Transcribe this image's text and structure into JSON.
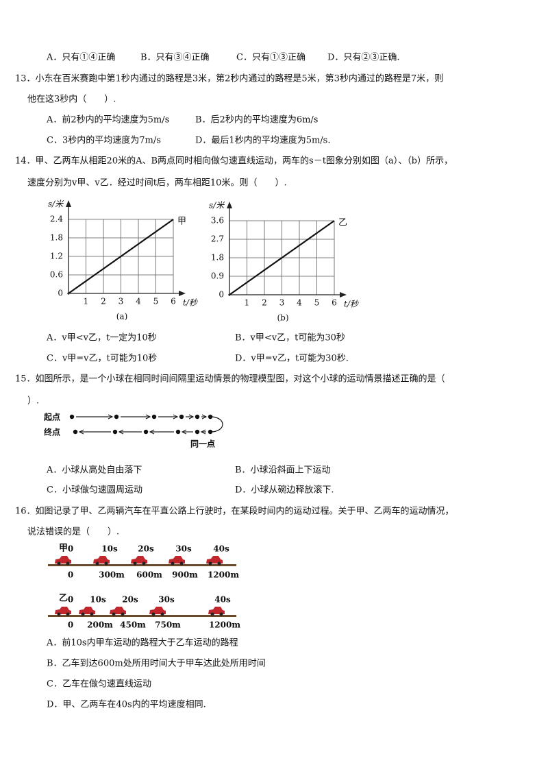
{
  "q12": {
    "options": [
      "A．只有①④正确",
      "B．只有③④正确",
      "C．只有①③正确",
      "D．只有②③正确."
    ]
  },
  "q13": {
    "stem": [
      "13．小东在百米赛跑中第1秒内通过的路程是3米，第2秒内通过的路程是5米，第3秒内通过的路程是7米，则",
      "他在这3秒内（　　）."
    ],
    "options": [
      "A．前2秒内的平均速度为5m/s",
      "B．后2秒内的平均速度为6m/s",
      "C．3秒内的平均速度为7m/s",
      "D．最后1秒内的平均速度为5m/s."
    ]
  },
  "q14": {
    "stem": [
      "14．甲、乙两车从相距20米的A、B两点同时相向做匀速直线运动，两车的s－t图象分别如图（a）、（b）所示，",
      "速度分别为v甲、v乙．经过时间t后，两车相距10米。则（　　）."
    ],
    "figure_a": {
      "y_label": "s/米",
      "x_label": "t/秒",
      "series_label": "甲",
      "caption": "(a)",
      "yticks": [
        "0",
        "0.6",
        "1.2",
        "1.8",
        "2.4"
      ],
      "xticks": [
        "1",
        "2",
        "3",
        "4",
        "5",
        "6"
      ]
    },
    "figure_b": {
      "y_label": "s/米",
      "x_label": "t/秒",
      "series_label": "乙",
      "caption": "(b)",
      "yticks": [
        "0",
        "0.9",
        "1.8",
        "2.7",
        "3.6"
      ],
      "xticks": [
        "1",
        "2",
        "3",
        "4",
        "5",
        "6"
      ]
    },
    "options": [
      "A．v甲<v乙，t一定为10秒",
      "B．v甲<v乙，t可能为30秒",
      "C．v甲=v乙，t可能为10秒",
      "D．v甲=v乙，t可能为30秒."
    ]
  },
  "q15": {
    "stem": [
      "15．如图所示，是一个小球在相同时间间隔里运动情景的物理模型图，对这个小球的运动情景描述正确的是（",
      "）."
    ],
    "figure": {
      "start": "起点",
      "end": "终点",
      "same_point": "同一点"
    },
    "options": [
      "A．小球从高处自由落下",
      "B．小球沿斜面上下运动",
      "C．小球做匀速圆周运动",
      "D．小球从碗边释放滚下."
    ]
  },
  "q16": {
    "stem": [
      "16．如图记录了甲、乙两辆汽车在平直公路上行驶时，在某段时间内的运动过程。关于甲、乙两车的运动情况，",
      "说法错误的是（　　）."
    ],
    "figure": {
      "jia": {
        "label": "甲",
        "times": [
          "0",
          "10s",
          "20s",
          "30s",
          "40s"
        ],
        "distances": [
          "0",
          "300m",
          "600m",
          "900m",
          "1200m"
        ]
      },
      "yi": {
        "label": "乙",
        "times": [
          "0",
          "10s",
          "20s",
          "30s",
          "40s"
        ],
        "distances": [
          "0",
          "200m",
          "450m",
          "750m",
          "1200m"
        ]
      }
    },
    "options": [
      "A．前10s内甲车运动的路程大于乙车运动的路程",
      "B．乙车到达600m处所用时间大于甲车达此处所用时间",
      "C．乙车在做匀速直线运动",
      "D．甲、乙两车在40s内的平均速度相同."
    ]
  }
}
